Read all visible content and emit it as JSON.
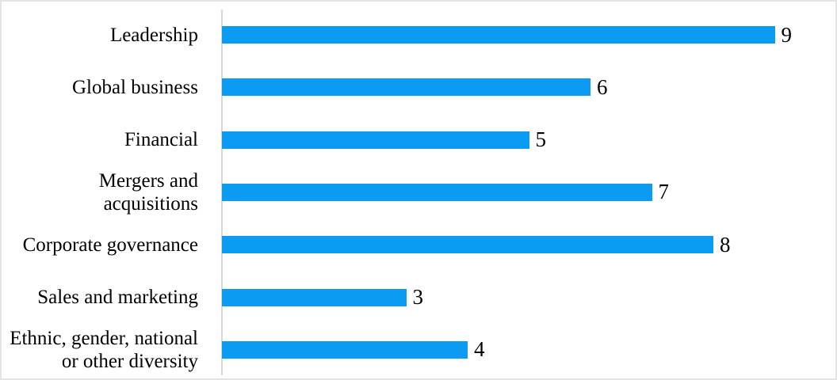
{
  "chart_data": {
    "type": "bar",
    "orientation": "horizontal",
    "title": "",
    "xlabel": "",
    "ylabel": "",
    "categories": [
      "Leadership",
      "Global business",
      "Financial",
      "Mergers and acquisitions",
      "Corporate governance",
      "Sales and marketing",
      "Ethnic, gender, national or other diversity"
    ],
    "values": [
      9,
      6,
      5,
      7,
      8,
      3,
      4
    ],
    "data_labels": [
      "9",
      "6",
      "5",
      "7",
      "8",
      "3",
      "4"
    ],
    "xlim": [
      0,
      10
    ],
    "grid": false,
    "legend": false,
    "colors": {
      "bar": "#0b9bf3",
      "axis_line": "#d8d8d8",
      "text": "#000000",
      "background": "#ffffff",
      "frame_border": "#e3e3e3"
    }
  }
}
